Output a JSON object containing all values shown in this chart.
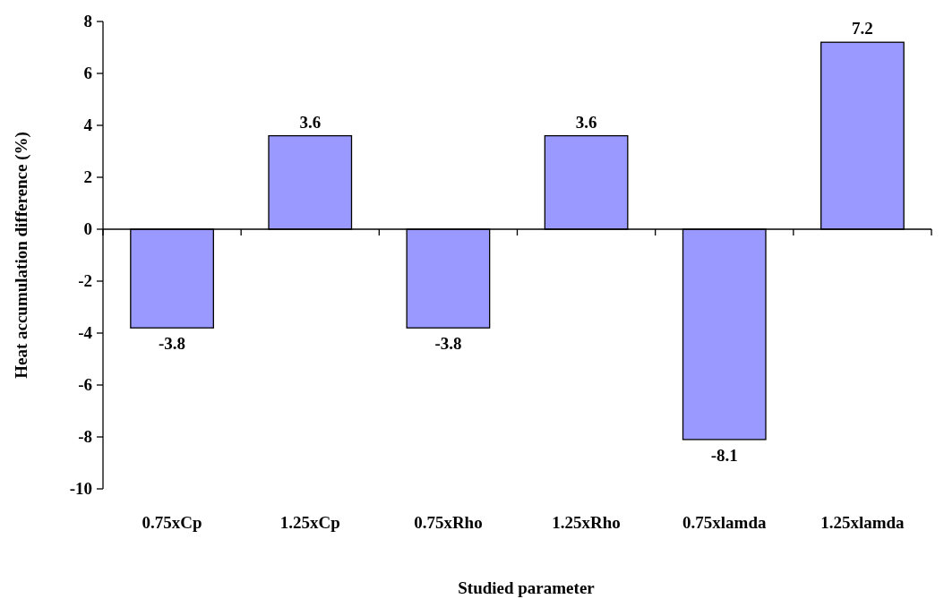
{
  "chart_data": {
    "type": "bar",
    "xlabel": "Studied parameter",
    "ylabel": "Heat accumulation difference (%)",
    "categories": [
      "0.75xCp",
      "1.25xCp",
      "0.75xRho",
      "1.25xRho",
      "0.75xlamda",
      "1.25xlamda"
    ],
    "values": [
      -3.8,
      3.6,
      -3.8,
      3.6,
      -8.1,
      7.2
    ],
    "color": "#9999ff",
    "ylim": [
      -10,
      8
    ],
    "yticks": [
      -10,
      -8,
      -6,
      -4,
      -2,
      0,
      2,
      4,
      6,
      8
    ],
    "data_labels": true
  }
}
